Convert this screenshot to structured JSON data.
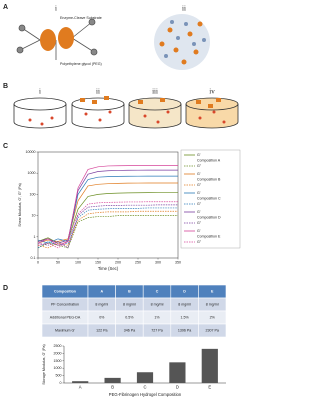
{
  "panels": {
    "a": {
      "label": "A",
      "sub": [
        "i",
        "ii"
      ],
      "substrate": "Enzyme-Cleave Substrate",
      "peg": "Polyethylene glycol (PEG)"
    },
    "b": {
      "label": "B",
      "sub": [
        "i",
        "ii",
        "iii",
        "iv"
      ]
    },
    "c": {
      "label": "C"
    },
    "d": {
      "label": "D"
    }
  },
  "table": {
    "header": [
      "Composition",
      "A",
      "B",
      "C",
      "D",
      "E"
    ],
    "rows": [
      [
        "PF Concentration",
        "8 mg/ml",
        "8 mg/ml",
        "8 mg/ml",
        "8 mg/ml",
        "8 mg/ml"
      ],
      [
        "Additional PEG-DA",
        "0%",
        "0.5%",
        "1%",
        "1.5%",
        "2%"
      ],
      [
        "Maximum G'",
        "122 Pa",
        "346 Pa",
        "727 Pa",
        "1396 Pa",
        "2307 Pa"
      ]
    ]
  },
  "chart_data": [
    {
      "type": "line",
      "xlabel": "Time (Sec)",
      "ylabel": "Shear Modulus, G', G'' (Pa)",
      "log_y": true,
      "x": [
        0,
        25,
        50,
        75,
        100,
        125,
        150,
        175,
        200,
        225,
        250,
        275,
        300,
        325,
        350
      ],
      "xlim": [
        0,
        350
      ],
      "xticks": [
        0,
        50,
        100,
        150,
        200,
        250,
        300,
        350
      ],
      "ylim": [
        0.1,
        10000
      ],
      "yticks": [
        0.1,
        1,
        10,
        100,
        1000,
        10000
      ],
      "series": [
        {
          "group": "Composition A",
          "name": "G'",
          "color": "#6b8e23",
          "values": [
            0.6,
            0.9,
            0.5,
            0.7,
            20,
            80,
            100,
            110,
            115,
            118,
            120,
            121,
            122,
            122,
            122
          ]
        },
        {
          "group": "Composition A",
          "name": "G''",
          "color": "#6b8e23",
          "values": [
            0.3,
            0.5,
            0.4,
            0.3,
            5,
            8,
            9,
            9,
            10,
            10,
            10,
            10,
            10,
            10,
            10
          ]
        },
        {
          "group": "Composition B",
          "name": "G'",
          "color": "#e07b1f",
          "values": [
            0.5,
            0.7,
            0.6,
            0.8,
            50,
            250,
            300,
            320,
            330,
            340,
            343,
            345,
            346,
            346,
            346
          ]
        },
        {
          "group": "Composition B",
          "name": "G''",
          "color": "#e07b1f",
          "values": [
            0.4,
            0.3,
            0.5,
            0.4,
            6,
            12,
            14,
            15,
            15,
            15,
            16,
            16,
            16,
            16,
            16
          ]
        },
        {
          "group": "Composition C",
          "name": "G'",
          "color": "#2a7ab8",
          "values": [
            0.7,
            0.5,
            0.8,
            0.6,
            100,
            500,
            650,
            690,
            710,
            720,
            724,
            726,
            727,
            727,
            727
          ]
        },
        {
          "group": "Composition C",
          "name": "G''",
          "color": "#2a7ab8",
          "values": [
            0.3,
            0.6,
            0.4,
            0.5,
            8,
            18,
            20,
            21,
            22,
            22,
            22,
            23,
            23,
            23,
            23
          ]
        },
        {
          "group": "Composition D",
          "name": "G'",
          "color": "#7b3fa0",
          "values": [
            0.6,
            0.8,
            0.5,
            0.7,
            150,
            900,
            1200,
            1300,
            1350,
            1380,
            1390,
            1394,
            1396,
            1396,
            1396
          ]
        },
        {
          "group": "Composition D",
          "name": "G''",
          "color": "#7b3fa0",
          "values": [
            0.5,
            0.4,
            0.6,
            0.3,
            10,
            25,
            28,
            30,
            30,
            31,
            31,
            31,
            32,
            32,
            32
          ]
        },
        {
          "group": "Composition E",
          "name": "G'",
          "color": "#d6459a",
          "values": [
            0.5,
            0.8,
            0.4,
            0.6,
            200,
            1500,
            2000,
            2200,
            2250,
            2280,
            2300,
            2300,
            2307,
            2307,
            2307
          ]
        },
        {
          "group": "Composition E",
          "name": "G''",
          "color": "#d6459a",
          "values": [
            0.4,
            0.5,
            0.3,
            0.6,
            12,
            35,
            40,
            42,
            43,
            44,
            44,
            45,
            45,
            45,
            45
          ]
        }
      ]
    },
    {
      "type": "bar",
      "xlabel": "PEG-Fibrinogen Hydrogel Composition",
      "ylabel": "Storage Modulus, G' (Pa)",
      "categories": [
        "A",
        "B",
        "C",
        "D",
        "E"
      ],
      "values": [
        122,
        346,
        727,
        1396,
        2307
      ],
      "color": "#555555",
      "ylim": [
        0,
        2500
      ],
      "yticks": [
        0,
        500,
        1000,
        1500,
        2000,
        2500
      ]
    }
  ]
}
